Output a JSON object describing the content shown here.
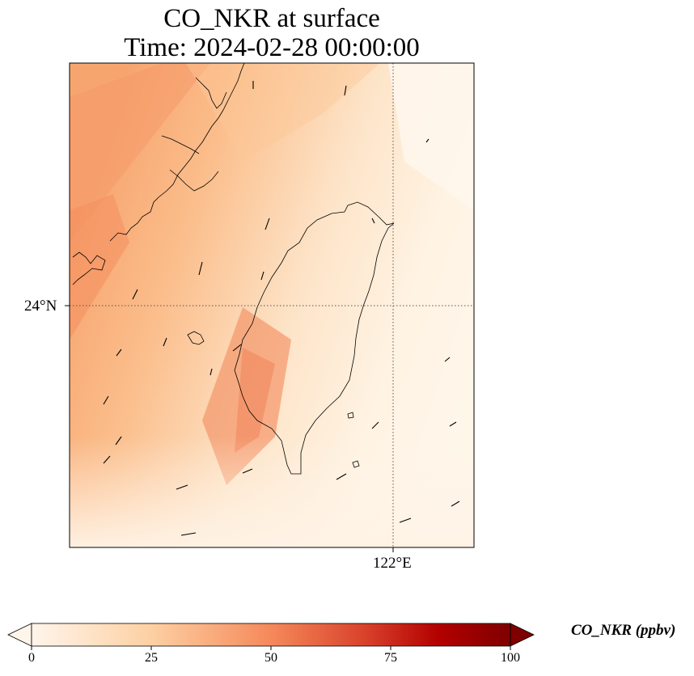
{
  "title": {
    "line1": "CO_NKR at surface",
    "line2": "Time: 2024-02-28 00:00:00"
  },
  "map": {
    "lat_label": "24°N",
    "lon_label": "122°E",
    "graticule_style": "dotted"
  },
  "colorbar": {
    "label": "CO_NKR (ppbv)",
    "ticks": [
      "0",
      "25",
      "50",
      "75",
      "100"
    ],
    "range": [
      0,
      100
    ],
    "extend": "both",
    "colormap_stops": [
      "#fff5eb",
      "#fdd0a2",
      "#fd8d3c",
      "#d94801",
      "#b30000",
      "#7f0000"
    ]
  }
}
